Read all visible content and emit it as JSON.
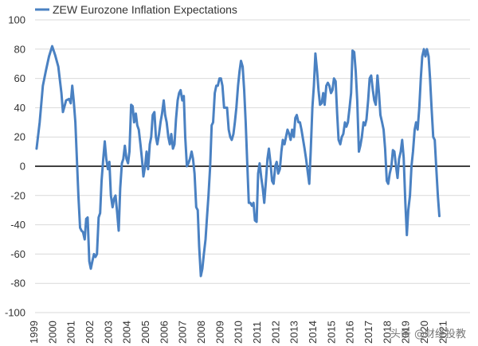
{
  "chart_data": {
    "type": "line",
    "title": "",
    "xlabel": "",
    "ylabel": "",
    "ylim": [
      -100,
      100
    ],
    "yticks": [
      100,
      80,
      60,
      40,
      20,
      0,
      -20,
      -40,
      -60,
      -80,
      -100
    ],
    "x_tick_labels": [
      "1999",
      "2000",
      "2001",
      "2002",
      "2003",
      "2004",
      "2005",
      "2006",
      "2007",
      "2008",
      "2009",
      "2010",
      "2011",
      "2012",
      "2013",
      "2014",
      "2015",
      "2016",
      "2017",
      "2018",
      "2019",
      "2020",
      "2021"
    ],
    "xlim": [
      1999.0,
      2022.4
    ],
    "legend": "top-left",
    "series": [
      {
        "name": "ZEW Eurozone Inflation Expectations",
        "color": "#4a81c2",
        "points": [
          [
            1999.08,
            12
          ],
          [
            1999.25,
            30
          ],
          [
            1999.42,
            55
          ],
          [
            1999.58,
            65
          ],
          [
            1999.75,
            75
          ],
          [
            1999.92,
            82
          ],
          [
            2000.08,
            76
          ],
          [
            2000.25,
            68
          ],
          [
            2000.42,
            50
          ],
          [
            2000.5,
            37
          ],
          [
            2000.67,
            45
          ],
          [
            2000.83,
            46
          ],
          [
            2000.92,
            43
          ],
          [
            2001.0,
            55
          ],
          [
            2001.08,
            45
          ],
          [
            2001.17,
            30
          ],
          [
            2001.25,
            5
          ],
          [
            2001.33,
            -20
          ],
          [
            2001.42,
            -42
          ],
          [
            2001.5,
            -44
          ],
          [
            2001.58,
            -45
          ],
          [
            2001.67,
            -50
          ],
          [
            2001.75,
            -36
          ],
          [
            2001.83,
            -35
          ],
          [
            2001.92,
            -65
          ],
          [
            2002.0,
            -70
          ],
          [
            2002.08,
            -65
          ],
          [
            2002.17,
            -60
          ],
          [
            2002.25,
            -62
          ],
          [
            2002.33,
            -60
          ],
          [
            2002.42,
            -35
          ],
          [
            2002.5,
            -32
          ],
          [
            2002.58,
            -10
          ],
          [
            2002.67,
            5
          ],
          [
            2002.75,
            17
          ],
          [
            2002.83,
            5
          ],
          [
            2002.92,
            -2
          ],
          [
            2003.0,
            3
          ],
          [
            2003.08,
            -20
          ],
          [
            2003.17,
            -28
          ],
          [
            2003.25,
            -22
          ],
          [
            2003.33,
            -20
          ],
          [
            2003.42,
            -32
          ],
          [
            2003.5,
            -44
          ],
          [
            2003.58,
            -15
          ],
          [
            2003.67,
            2
          ],
          [
            2003.75,
            5
          ],
          [
            2003.83,
            14
          ],
          [
            2003.92,
            5
          ],
          [
            2004.0,
            2
          ],
          [
            2004.08,
            10
          ],
          [
            2004.17,
            42
          ],
          [
            2004.25,
            41
          ],
          [
            2004.33,
            30
          ],
          [
            2004.42,
            36
          ],
          [
            2004.5,
            28
          ],
          [
            2004.58,
            25
          ],
          [
            2004.67,
            15
          ],
          [
            2004.75,
            5
          ],
          [
            2004.83,
            -7
          ],
          [
            2004.92,
            0
          ],
          [
            2005.0,
            10
          ],
          [
            2005.08,
            -2
          ],
          [
            2005.17,
            15
          ],
          [
            2005.25,
            20
          ],
          [
            2005.33,
            35
          ],
          [
            2005.42,
            37
          ],
          [
            2005.5,
            20
          ],
          [
            2005.58,
            15
          ],
          [
            2005.67,
            22
          ],
          [
            2005.75,
            30
          ],
          [
            2005.83,
            36
          ],
          [
            2005.92,
            45
          ],
          [
            2006.0,
            35
          ],
          [
            2006.08,
            30
          ],
          [
            2006.17,
            20
          ],
          [
            2006.25,
            15
          ],
          [
            2006.33,
            22
          ],
          [
            2006.42,
            12
          ],
          [
            2006.5,
            15
          ],
          [
            2006.58,
            32
          ],
          [
            2006.67,
            45
          ],
          [
            2006.75,
            50
          ],
          [
            2006.83,
            52
          ],
          [
            2006.92,
            45
          ],
          [
            2007.0,
            48
          ],
          [
            2007.08,
            20
          ],
          [
            2007.17,
            0
          ],
          [
            2007.25,
            2
          ],
          [
            2007.33,
            5
          ],
          [
            2007.42,
            10
          ],
          [
            2007.5,
            5
          ],
          [
            2007.58,
            -5
          ],
          [
            2007.67,
            -28
          ],
          [
            2007.75,
            -30
          ],
          [
            2007.83,
            -55
          ],
          [
            2007.92,
            -75
          ],
          [
            2008.0,
            -70
          ],
          [
            2008.08,
            -60
          ],
          [
            2008.17,
            -50
          ],
          [
            2008.25,
            -35
          ],
          [
            2008.33,
            -20
          ],
          [
            2008.42,
            0
          ],
          [
            2008.5,
            28
          ],
          [
            2008.58,
            30
          ],
          [
            2008.67,
            50
          ],
          [
            2008.75,
            55
          ],
          [
            2008.83,
            55
          ],
          [
            2008.92,
            60
          ],
          [
            2009.0,
            60
          ],
          [
            2009.08,
            55
          ],
          [
            2009.17,
            40
          ],
          [
            2009.25,
            40
          ],
          [
            2009.33,
            40
          ],
          [
            2009.42,
            25
          ],
          [
            2009.5,
            20
          ],
          [
            2009.58,
            18
          ],
          [
            2009.67,
            22
          ],
          [
            2009.75,
            30
          ],
          [
            2009.83,
            40
          ],
          [
            2009.92,
            55
          ],
          [
            2010.0,
            65
          ],
          [
            2010.08,
            72
          ],
          [
            2010.17,
            68
          ],
          [
            2010.25,
            52
          ],
          [
            2010.33,
            30
          ],
          [
            2010.42,
            0
          ],
          [
            2010.5,
            -25
          ],
          [
            2010.58,
            -25
          ],
          [
            2010.67,
            -27
          ],
          [
            2010.75,
            -25
          ],
          [
            2010.83,
            -37
          ],
          [
            2010.92,
            -38
          ],
          [
            2011.0,
            -5
          ],
          [
            2011.08,
            2
          ],
          [
            2011.17,
            -8
          ],
          [
            2011.25,
            -15
          ],
          [
            2011.33,
            -25
          ],
          [
            2011.42,
            -10
          ],
          [
            2011.5,
            5
          ],
          [
            2011.58,
            12
          ],
          [
            2011.67,
            2
          ],
          [
            2011.75,
            -10
          ],
          [
            2011.83,
            -12
          ],
          [
            2011.92,
            0
          ],
          [
            2012.0,
            3
          ],
          [
            2012.08,
            -5
          ],
          [
            2012.17,
            -2
          ],
          [
            2012.25,
            10
          ],
          [
            2012.33,
            18
          ],
          [
            2012.42,
            15
          ],
          [
            2012.5,
            20
          ],
          [
            2012.58,
            25
          ],
          [
            2012.67,
            22
          ],
          [
            2012.75,
            18
          ],
          [
            2012.83,
            25
          ],
          [
            2012.92,
            20
          ],
          [
            2013.0,
            33
          ],
          [
            2013.08,
            35
          ],
          [
            2013.17,
            30
          ],
          [
            2013.25,
            30
          ],
          [
            2013.33,
            25
          ],
          [
            2013.42,
            18
          ],
          [
            2013.5,
            12
          ],
          [
            2013.58,
            5
          ],
          [
            2013.67,
            -4
          ],
          [
            2013.75,
            -12
          ],
          [
            2013.83,
            10
          ],
          [
            2013.92,
            40
          ],
          [
            2014.0,
            55
          ],
          [
            2014.08,
            77
          ],
          [
            2014.17,
            65
          ],
          [
            2014.25,
            52
          ],
          [
            2014.33,
            42
          ],
          [
            2014.42,
            43
          ],
          [
            2014.5,
            50
          ],
          [
            2014.58,
            42
          ],
          [
            2014.67,
            55
          ],
          [
            2014.75,
            57
          ],
          [
            2014.83,
            55
          ],
          [
            2014.92,
            50
          ],
          [
            2015.0,
            52
          ],
          [
            2015.08,
            60
          ],
          [
            2015.17,
            58
          ],
          [
            2015.25,
            36
          ],
          [
            2015.33,
            18
          ],
          [
            2015.42,
            15
          ],
          [
            2015.5,
            20
          ],
          [
            2015.58,
            22
          ],
          [
            2015.67,
            30
          ],
          [
            2015.75,
            27
          ],
          [
            2015.83,
            30
          ],
          [
            2015.92,
            40
          ],
          [
            2016.0,
            50
          ],
          [
            2016.08,
            79
          ],
          [
            2016.17,
            78
          ],
          [
            2016.25,
            65
          ],
          [
            2016.33,
            45
          ],
          [
            2016.42,
            10
          ],
          [
            2016.5,
            14
          ],
          [
            2016.58,
            20
          ],
          [
            2016.67,
            30
          ],
          [
            2016.75,
            28
          ],
          [
            2016.83,
            32
          ],
          [
            2016.92,
            45
          ],
          [
            2017.0,
            60
          ],
          [
            2017.08,
            62
          ],
          [
            2017.17,
            52
          ],
          [
            2017.25,
            45
          ],
          [
            2017.33,
            42
          ],
          [
            2017.42,
            62
          ],
          [
            2017.5,
            50
          ],
          [
            2017.58,
            35
          ],
          [
            2017.67,
            30
          ],
          [
            2017.75,
            25
          ],
          [
            2017.83,
            12
          ],
          [
            2017.92,
            -10
          ],
          [
            2018.0,
            -12
          ],
          [
            2018.08,
            -5
          ],
          [
            2018.17,
            0
          ],
          [
            2018.25,
            11
          ],
          [
            2018.33,
            10
          ],
          [
            2018.42,
            0
          ],
          [
            2018.5,
            -8
          ],
          [
            2018.58,
            5
          ],
          [
            2018.67,
            10
          ],
          [
            2018.75,
            18
          ],
          [
            2018.83,
            6
          ],
          [
            2018.92,
            -25
          ],
          [
            2019.0,
            -47
          ],
          [
            2019.08,
            -30
          ],
          [
            2019.17,
            -20
          ],
          [
            2019.25,
            0
          ],
          [
            2019.33,
            10
          ],
          [
            2019.42,
            25
          ],
          [
            2019.5,
            30
          ],
          [
            2019.58,
            25
          ],
          [
            2019.67,
            40
          ],
          [
            2019.75,
            60
          ],
          [
            2019.83,
            75
          ],
          [
            2019.92,
            80
          ],
          [
            2020.0,
            75
          ],
          [
            2020.08,
            80
          ],
          [
            2020.17,
            75
          ],
          [
            2020.25,
            60
          ],
          [
            2020.33,
            40
          ],
          [
            2020.42,
            20
          ],
          [
            2020.5,
            18
          ],
          [
            2020.58,
            0
          ],
          [
            2020.67,
            -20
          ],
          [
            2020.75,
            -34
          ]
        ]
      }
    ]
  },
  "watermark": {
    "text": "头条 @财经投教"
  }
}
